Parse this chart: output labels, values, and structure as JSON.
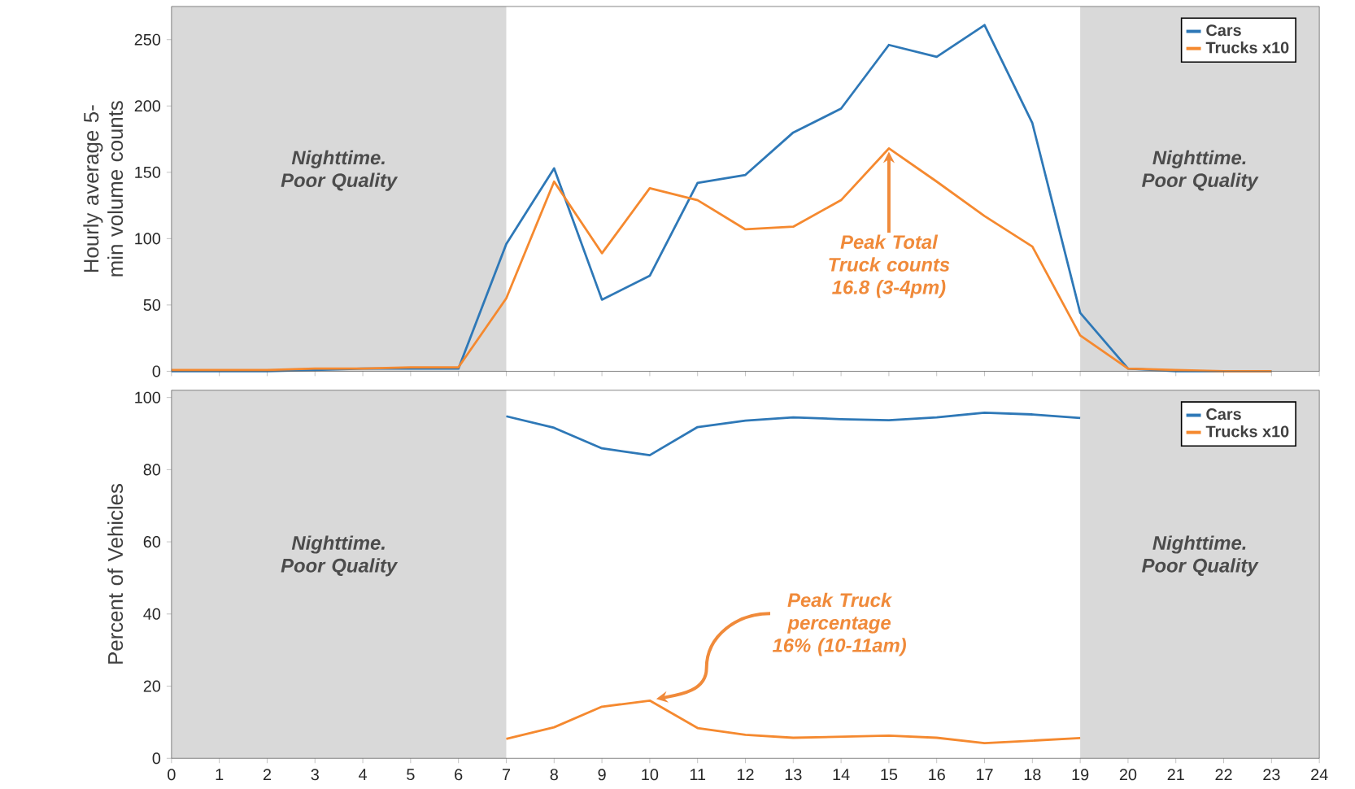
{
  "chart_data": [
    {
      "type": "line",
      "ylabel": "Hourly average 5-min volume counts",
      "x": [
        0,
        1,
        2,
        3,
        4,
        5,
        6,
        7,
        8,
        9,
        10,
        11,
        12,
        13,
        14,
        15,
        16,
        17,
        18,
        19,
        20,
        21,
        22,
        23
      ],
      "xlim": [
        0,
        24
      ],
      "xticks": [
        0,
        1,
        2,
        3,
        4,
        5,
        6,
        7,
        8,
        9,
        10,
        11,
        12,
        13,
        14,
        15,
        16,
        17,
        18,
        19,
        20,
        21,
        22,
        23,
        24
      ],
      "ylim": [
        0,
        275
      ],
      "yticks": [
        0,
        50,
        100,
        150,
        200,
        250
      ],
      "tick_labels": "y",
      "legend": "top right",
      "series": [
        {
          "name": "Cars",
          "color": "#2e78b7",
          "values": [
            0,
            0,
            0,
            1,
            2,
            2,
            2,
            96,
            153,
            54,
            72,
            142,
            148,
            180,
            198,
            246,
            237,
            261,
            187,
            44,
            2,
            0,
            0,
            0
          ]
        },
        {
          "name": "Trucks x10",
          "color": "#f5892f",
          "values": [
            1,
            1,
            1,
            2,
            2,
            3,
            3,
            55,
            143,
            89,
            138,
            129,
            107,
            109,
            129,
            168,
            143,
            117,
            94,
            27,
            2,
            1,
            0,
            0
          ]
        }
      ],
      "bands": [
        {
          "axis": "x",
          "from": 0,
          "to": 7,
          "label": "Nighttime. Poor Quality",
          "color": "#d9d9d9"
        },
        {
          "axis": "x",
          "from": 19,
          "to": 24,
          "label": "Nighttime. Poor Quality",
          "color": "#d9d9d9"
        }
      ],
      "annotations": [
        {
          "text": "Peak Total Truck counts 16.8 (3-4pm)",
          "x": 15,
          "y": 168
        }
      ]
    },
    {
      "type": "line",
      "ylabel": "Percent of Vehicles",
      "xlim": [
        0,
        24
      ],
      "xticks": [
        0,
        1,
        2,
        3,
        4,
        5,
        6,
        7,
        8,
        9,
        10,
        11,
        12,
        13,
        14,
        15,
        16,
        17,
        18,
        19,
        20,
        21,
        22,
        23,
        24
      ],
      "ylim": [
        0,
        102
      ],
      "yticks": [
        0,
        20,
        40,
        60,
        80,
        100
      ],
      "legend": "top right",
      "series": [
        {
          "name": "Cars",
          "color": "#2e78b7",
          "x": [
            7,
            8,
            9,
            10,
            11,
            12,
            13,
            14,
            15,
            16,
            17,
            18,
            19
          ],
          "values": [
            94.8,
            91.6,
            85.9,
            84,
            91.8,
            93.6,
            94.5,
            94,
            93.7,
            94.5,
            95.8,
            95.3,
            94.3
          ]
        },
        {
          "name": "Trucks x10",
          "color": "#f5892f",
          "x": [
            7,
            8,
            9,
            10,
            11,
            12,
            13,
            14,
            15,
            16,
            17,
            18,
            19
          ],
          "values": [
            5.4,
            8.6,
            14.3,
            16,
            8.4,
            6.5,
            5.7,
            6,
            6.3,
            5.7,
            4.2,
            4.9,
            5.6
          ]
        }
      ],
      "bands": [
        {
          "axis": "x",
          "from": 0,
          "to": 7,
          "label": "Nighttime. Poor Quality",
          "color": "#d9d9d9"
        },
        {
          "axis": "x",
          "from": 19,
          "to": 24,
          "label": "Nighttime. Poor Quality",
          "color": "#d9d9d9"
        }
      ],
      "annotations": [
        {
          "text": "Peak Truck percentage 16% (10-11am)",
          "x": 10,
          "y": 16
        }
      ]
    }
  ]
}
